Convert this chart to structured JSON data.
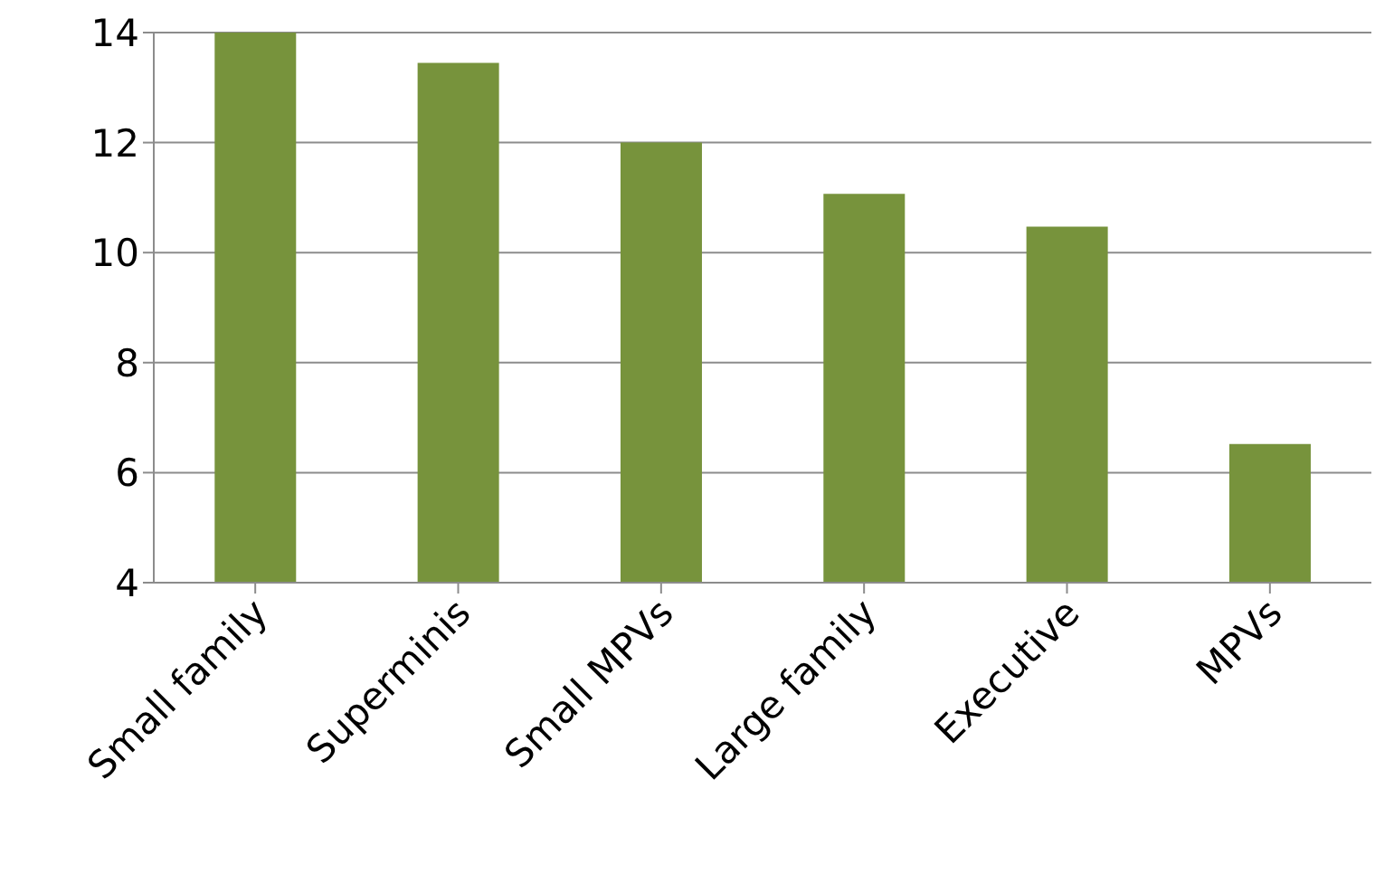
{
  "chart_data": {
    "type": "bar",
    "categories": [
      "Small family",
      "Superminis",
      "Small MPVs",
      "Large family",
      "Executive",
      "MPVs"
    ],
    "values": [
      14,
      13.45,
      12,
      11.07,
      10.47,
      6.52
    ],
    "color": "#77933c",
    "ylim": [
      4,
      14
    ],
    "yticks": [
      4,
      6,
      8,
      10,
      12,
      14
    ],
    "grid": "y"
  }
}
